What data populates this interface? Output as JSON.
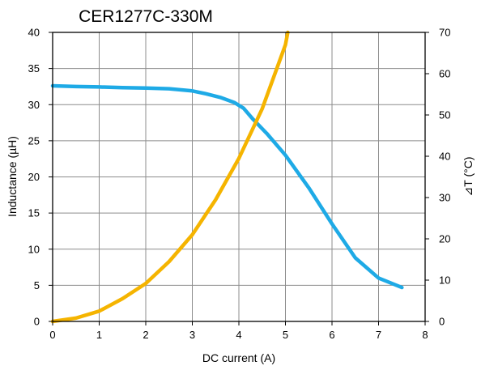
{
  "chart_data": {
    "type": "line",
    "title": "CER1277C-330M",
    "xlabel": "DC current (A)",
    "ylabel": "Inductance (µH)",
    "y2label": "⊿T (°C)",
    "xlim": [
      0,
      8
    ],
    "ylim": [
      0,
      40
    ],
    "y2lim": [
      0,
      70
    ],
    "x_ticks": [
      0,
      1,
      2,
      3,
      4,
      5,
      6,
      7,
      8
    ],
    "y_ticks": [
      0,
      5,
      10,
      15,
      20,
      25,
      30,
      35,
      40
    ],
    "y2_ticks": [
      0,
      10,
      20,
      30,
      40,
      50,
      60,
      70
    ],
    "grid": true,
    "series": [
      {
        "axis": "left",
        "color": "#1eaae6",
        "x": [
          0,
          0.5,
          1,
          1.5,
          2,
          2.5,
          3,
          3.3,
          3.6,
          3.9,
          4.1,
          4.3,
          4.6,
          5,
          5.5,
          6,
          6.5,
          7,
          7.5
        ],
        "y": [
          32.6,
          32.5,
          32.45,
          32.35,
          32.3,
          32.2,
          31.9,
          31.5,
          31.0,
          30.3,
          29.5,
          28.0,
          26.0,
          23.0,
          18.5,
          13.5,
          8.8,
          6.0,
          4.7
        ]
      },
      {
        "axis": "right",
        "color": "#f5b400",
        "x": [
          0,
          0.5,
          1,
          1.5,
          2,
          2.5,
          3,
          3.5,
          4,
          4.5,
          5,
          5.05
        ],
        "y": [
          0,
          0.8,
          2.5,
          5.5,
          9.2,
          14.5,
          21.0,
          29.5,
          39.5,
          51.5,
          67.0,
          70.0
        ]
      }
    ]
  }
}
